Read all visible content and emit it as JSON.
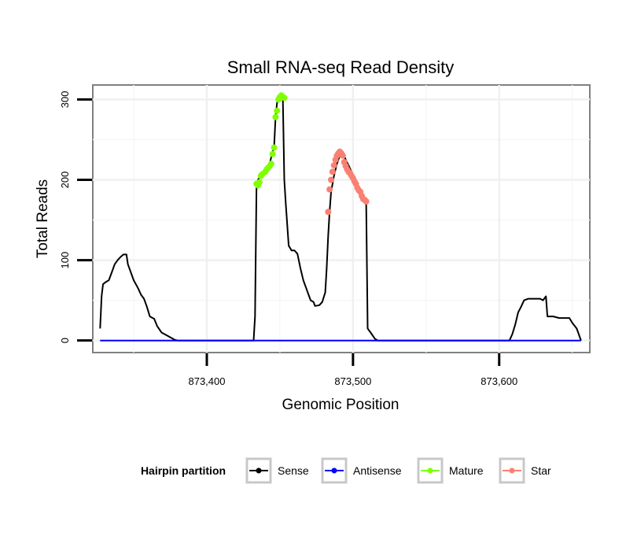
{
  "chart_data": {
    "type": "line",
    "title": "Small RNA-seq Read Density",
    "xlabel": "Genomic Position",
    "ylabel": "Total Reads",
    "xlim": [
      873322,
      873662
    ],
    "ylim": [
      -15,
      318
    ],
    "x_ticks": [
      873400,
      873500,
      873600
    ],
    "x_tick_labels": [
      "873,400",
      "873,500",
      "873,600"
    ],
    "y_ticks": [
      0,
      100,
      200,
      300
    ],
    "y_tick_labels": [
      "0",
      "100",
      "200",
      "300"
    ],
    "grid": true,
    "legend": {
      "title": "Hairpin partition",
      "position": "bottom",
      "entries": [
        {
          "label": "Sense",
          "color": "#000000"
        },
        {
          "label": "Antisense",
          "color": "#0000ff"
        },
        {
          "label": "Mature",
          "color": "#7fff00"
        },
        {
          "label": "Star",
          "color": "#fa8072"
        }
      ]
    },
    "series": [
      {
        "name": "Sense",
        "color": "#000000",
        "points": [
          [
            873327,
            15
          ],
          [
            873328,
            55
          ],
          [
            873329,
            70
          ],
          [
            873331,
            73
          ],
          [
            873333,
            75
          ],
          [
            873335,
            85
          ],
          [
            873337,
            95
          ],
          [
            873339,
            100
          ],
          [
            873341,
            104
          ],
          [
            873343,
            107
          ],
          [
            873345,
            107
          ],
          [
            873346,
            95
          ],
          [
            873348,
            85
          ],
          [
            873350,
            75
          ],
          [
            873353,
            65
          ],
          [
            873355,
            57
          ],
          [
            873357,
            52
          ],
          [
            873359,
            42
          ],
          [
            873361,
            30
          ],
          [
            873364,
            27
          ],
          [
            873366,
            18
          ],
          [
            873369,
            10
          ],
          [
            873372,
            7
          ],
          [
            873375,
            4
          ],
          [
            873378,
            1
          ],
          [
            873380,
            0
          ],
          [
            873385,
            0
          ],
          [
            873400,
            0
          ],
          [
            873420,
            0
          ],
          [
            873432,
            0
          ],
          [
            873433,
            30
          ],
          [
            873434,
            195
          ],
          [
            873435,
            200
          ],
          [
            873437,
            205
          ],
          [
            873439,
            212
          ],
          [
            873441,
            215
          ],
          [
            873443,
            220
          ],
          [
            873445,
            235
          ],
          [
            873446,
            240
          ],
          [
            873447,
            278
          ],
          [
            873448,
            295
          ],
          [
            873449,
            302
          ],
          [
            873450,
            305
          ],
          [
            873452,
            305
          ],
          [
            873453,
            200
          ],
          [
            873454,
            170
          ],
          [
            873456,
            118
          ],
          [
            873458,
            112
          ],
          [
            873460,
            112
          ],
          [
            873462,
            108
          ],
          [
            873464,
            90
          ],
          [
            873466,
            75
          ],
          [
            873468,
            65
          ],
          [
            873470,
            55
          ],
          [
            873471,
            50
          ],
          [
            873473,
            48
          ],
          [
            873474,
            43
          ],
          [
            873477,
            44
          ],
          [
            873479,
            48
          ],
          [
            873481,
            60
          ],
          [
            873482,
            90
          ],
          [
            873483,
            130
          ],
          [
            873484,
            160
          ],
          [
            873485,
            185
          ],
          [
            873487,
            205
          ],
          [
            873489,
            220
          ],
          [
            873491,
            230
          ],
          [
            873493,
            235
          ],
          [
            873495,
            225
          ],
          [
            873497,
            218
          ],
          [
            873499,
            210
          ],
          [
            873501,
            200
          ],
          [
            873503,
            192
          ],
          [
            873505,
            183
          ],
          [
            873507,
            175
          ],
          [
            873509,
            174
          ],
          [
            873510,
            15
          ],
          [
            873512,
            10
          ],
          [
            873515,
            2
          ],
          [
            873517,
            0
          ],
          [
            873540,
            0
          ],
          [
            873580,
            0
          ],
          [
            873607,
            0
          ],
          [
            873609,
            8
          ],
          [
            873611,
            20
          ],
          [
            873613,
            35
          ],
          [
            873615,
            42
          ],
          [
            873617,
            50
          ],
          [
            873620,
            52
          ],
          [
            873625,
            52
          ],
          [
            873628,
            52
          ],
          [
            873630,
            50
          ],
          [
            873632,
            55
          ],
          [
            873633,
            30
          ],
          [
            873637,
            30
          ],
          [
            873641,
            28
          ],
          [
            873648,
            28
          ],
          [
            873650,
            22
          ],
          [
            873653,
            15
          ],
          [
            873655,
            5
          ],
          [
            873656,
            0
          ]
        ]
      },
      {
        "name": "Antisense",
        "color": "#0000ff",
        "points": [
          [
            873327,
            0
          ],
          [
            873656,
            0
          ]
        ]
      },
      {
        "name": "Mature",
        "color": "#7fff00",
        "points": [
          [
            873434,
            195
          ],
          [
            873435,
            193
          ],
          [
            873436,
            197
          ],
          [
            873437,
            205
          ],
          [
            873438,
            207
          ],
          [
            873440,
            210
          ],
          [
            873441,
            213
          ],
          [
            873442,
            215
          ],
          [
            873443,
            217
          ],
          [
            873444,
            220
          ],
          [
            873445,
            232
          ],
          [
            873446,
            240
          ],
          [
            873447,
            278
          ],
          [
            873448,
            286
          ],
          [
            873449,
            300
          ],
          [
            873450,
            303
          ],
          [
            873451,
            305
          ],
          [
            873452,
            303
          ],
          [
            873453,
            302
          ]
        ]
      },
      {
        "name": "Star",
        "color": "#fa8072",
        "points": [
          [
            873483,
            160
          ],
          [
            873484,
            188
          ],
          [
            873485,
            200
          ],
          [
            873486,
            210
          ],
          [
            873487,
            218
          ],
          [
            873488,
            225
          ],
          [
            873489,
            230
          ],
          [
            873490,
            233
          ],
          [
            873491,
            235
          ],
          [
            873492,
            233
          ],
          [
            873493,
            230
          ],
          [
            873494,
            222
          ],
          [
            873495,
            217
          ],
          [
            873496,
            213
          ],
          [
            873497,
            210
          ],
          [
            873498,
            208
          ],
          [
            873499,
            205
          ],
          [
            873500,
            202
          ],
          [
            873501,
            198
          ],
          [
            873502,
            195
          ],
          [
            873503,
            190
          ],
          [
            873504,
            187
          ],
          [
            873505,
            185
          ],
          [
            873506,
            180
          ],
          [
            873507,
            176
          ],
          [
            873508,
            175
          ],
          [
            873509,
            173
          ]
        ]
      }
    ]
  }
}
